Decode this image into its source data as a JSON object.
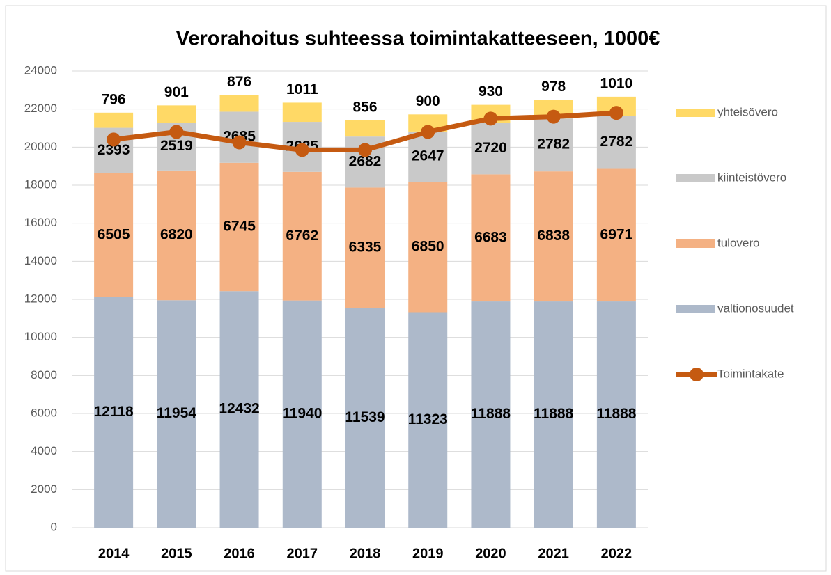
{
  "chart_data": {
    "type": "bar",
    "stacked": true,
    "title": "Verorahoitus suhteessa toimintakatteeseen, 1000€",
    "categories": [
      "2014",
      "2015",
      "2016",
      "2017",
      "2018",
      "2019",
      "2020",
      "2021",
      "2022"
    ],
    "series": [
      {
        "name": "valtionosuudet",
        "color": "#adb9ca",
        "values": [
          12118,
          11954,
          12432,
          11940,
          11539,
          11323,
          11888,
          11888,
          11888
        ]
      },
      {
        "name": "tulovero",
        "color": "#f4b183",
        "values": [
          6505,
          6820,
          6745,
          6762,
          6335,
          6850,
          6683,
          6838,
          6971
        ]
      },
      {
        "name": "kiinteistövero",
        "color": "#c9c9c9",
        "values": [
          2393,
          2519,
          2685,
          2625,
          2682,
          2647,
          2720,
          2782,
          2782
        ]
      },
      {
        "name": "yhteisövero",
        "color": "#ffd966",
        "values": [
          796,
          901,
          876,
          1011,
          856,
          900,
          930,
          978,
          1010
        ]
      },
      {
        "name": "Toimintakate",
        "type": "line",
        "color": "#c55a11",
        "values": [
          20400,
          20800,
          20250,
          19850,
          19850,
          20800,
          21500,
          21600,
          21800
        ]
      }
    ],
    "ylim": [
      0,
      24000
    ],
    "yticks": [
      0,
      2000,
      4000,
      6000,
      8000,
      10000,
      12000,
      14000,
      16000,
      18000,
      20000,
      22000,
      24000
    ],
    "grid": true,
    "legend": "right"
  }
}
